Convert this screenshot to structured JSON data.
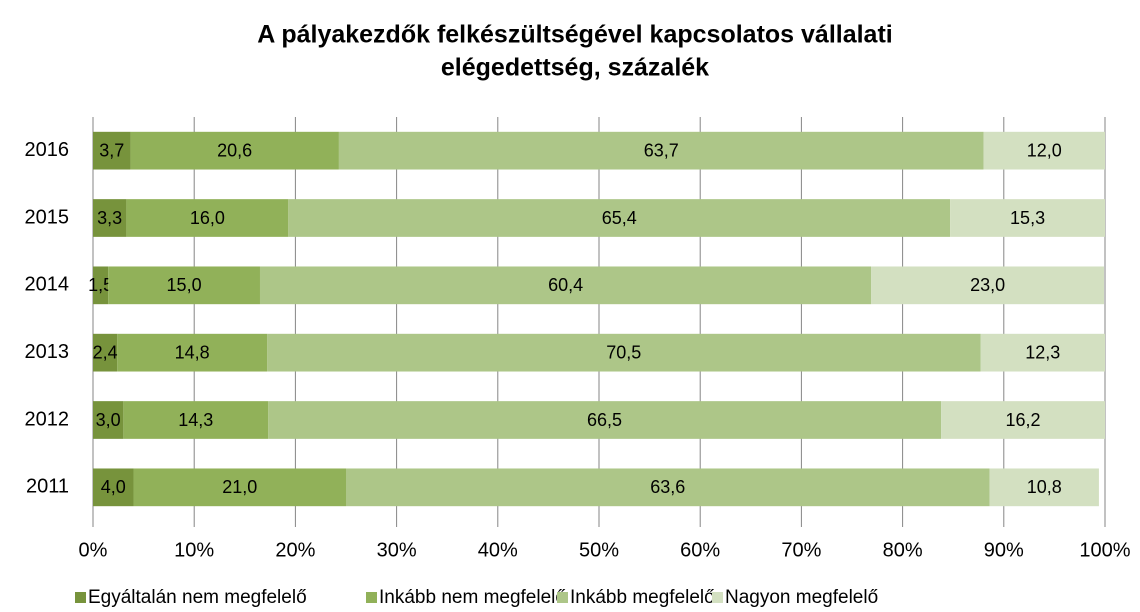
{
  "chart_data": {
    "type": "bar",
    "orientation": "horizontal",
    "stacked": true,
    "title": [
      "A pályakezdők felkészültségével kapcsolatos vállalati",
      "elégedettség, százalék"
    ],
    "categories": [
      "2016",
      "2015",
      "2014",
      "2013",
      "2012",
      "2011"
    ],
    "series": [
      {
        "name": "Egyáltalán nem megfelelő",
        "color": "#77933c",
        "values": [
          3.7,
          3.3,
          1.5,
          2.4,
          3.0,
          4.0
        ],
        "value_labels": [
          "3,7",
          "3,3",
          "1,5",
          "2,4",
          "3,0",
          "4,0"
        ]
      },
      {
        "name": "Inkább nem megfelelő",
        "color": "#91b159",
        "values": [
          20.6,
          16.0,
          15.0,
          14.8,
          14.3,
          21.0
        ],
        "value_labels": [
          "20,6",
          "16,0",
          "15,0",
          "14,8",
          "14,3",
          "21,0"
        ]
      },
      {
        "name": "Inkább megfelelő",
        "color": "#adc688",
        "values": [
          63.7,
          65.4,
          60.4,
          70.5,
          66.5,
          63.6
        ],
        "value_labels": [
          "63,7",
          "65,4",
          "60,4",
          "70,5",
          "66,5",
          "63,6"
        ]
      },
      {
        "name": "Nagyon megfelelő",
        "color": "#d3e0c1",
        "values": [
          12.0,
          15.3,
          23.0,
          12.3,
          16.2,
          10.8
        ],
        "value_labels": [
          "12,0",
          "15,3",
          "23,0",
          "12,3",
          "16,2",
          "10,8"
        ]
      }
    ],
    "xlim": [
      0,
      100
    ],
    "xticks": [
      {
        "value": 0,
        "label": "0%"
      },
      {
        "value": 10,
        "label": "10%"
      },
      {
        "value": 20,
        "label": "20%"
      },
      {
        "value": 30,
        "label": "30%"
      },
      {
        "value": 40,
        "label": "40%"
      },
      {
        "value": 50,
        "label": "50%"
      },
      {
        "value": 60,
        "label": "60%"
      },
      {
        "value": 70,
        "label": "70%"
      },
      {
        "value": 80,
        "label": "80%"
      },
      {
        "value": 90,
        "label": "90%"
      },
      {
        "value": 100,
        "label": "100%"
      }
    ],
    "grid": true,
    "legend": "bottom"
  }
}
